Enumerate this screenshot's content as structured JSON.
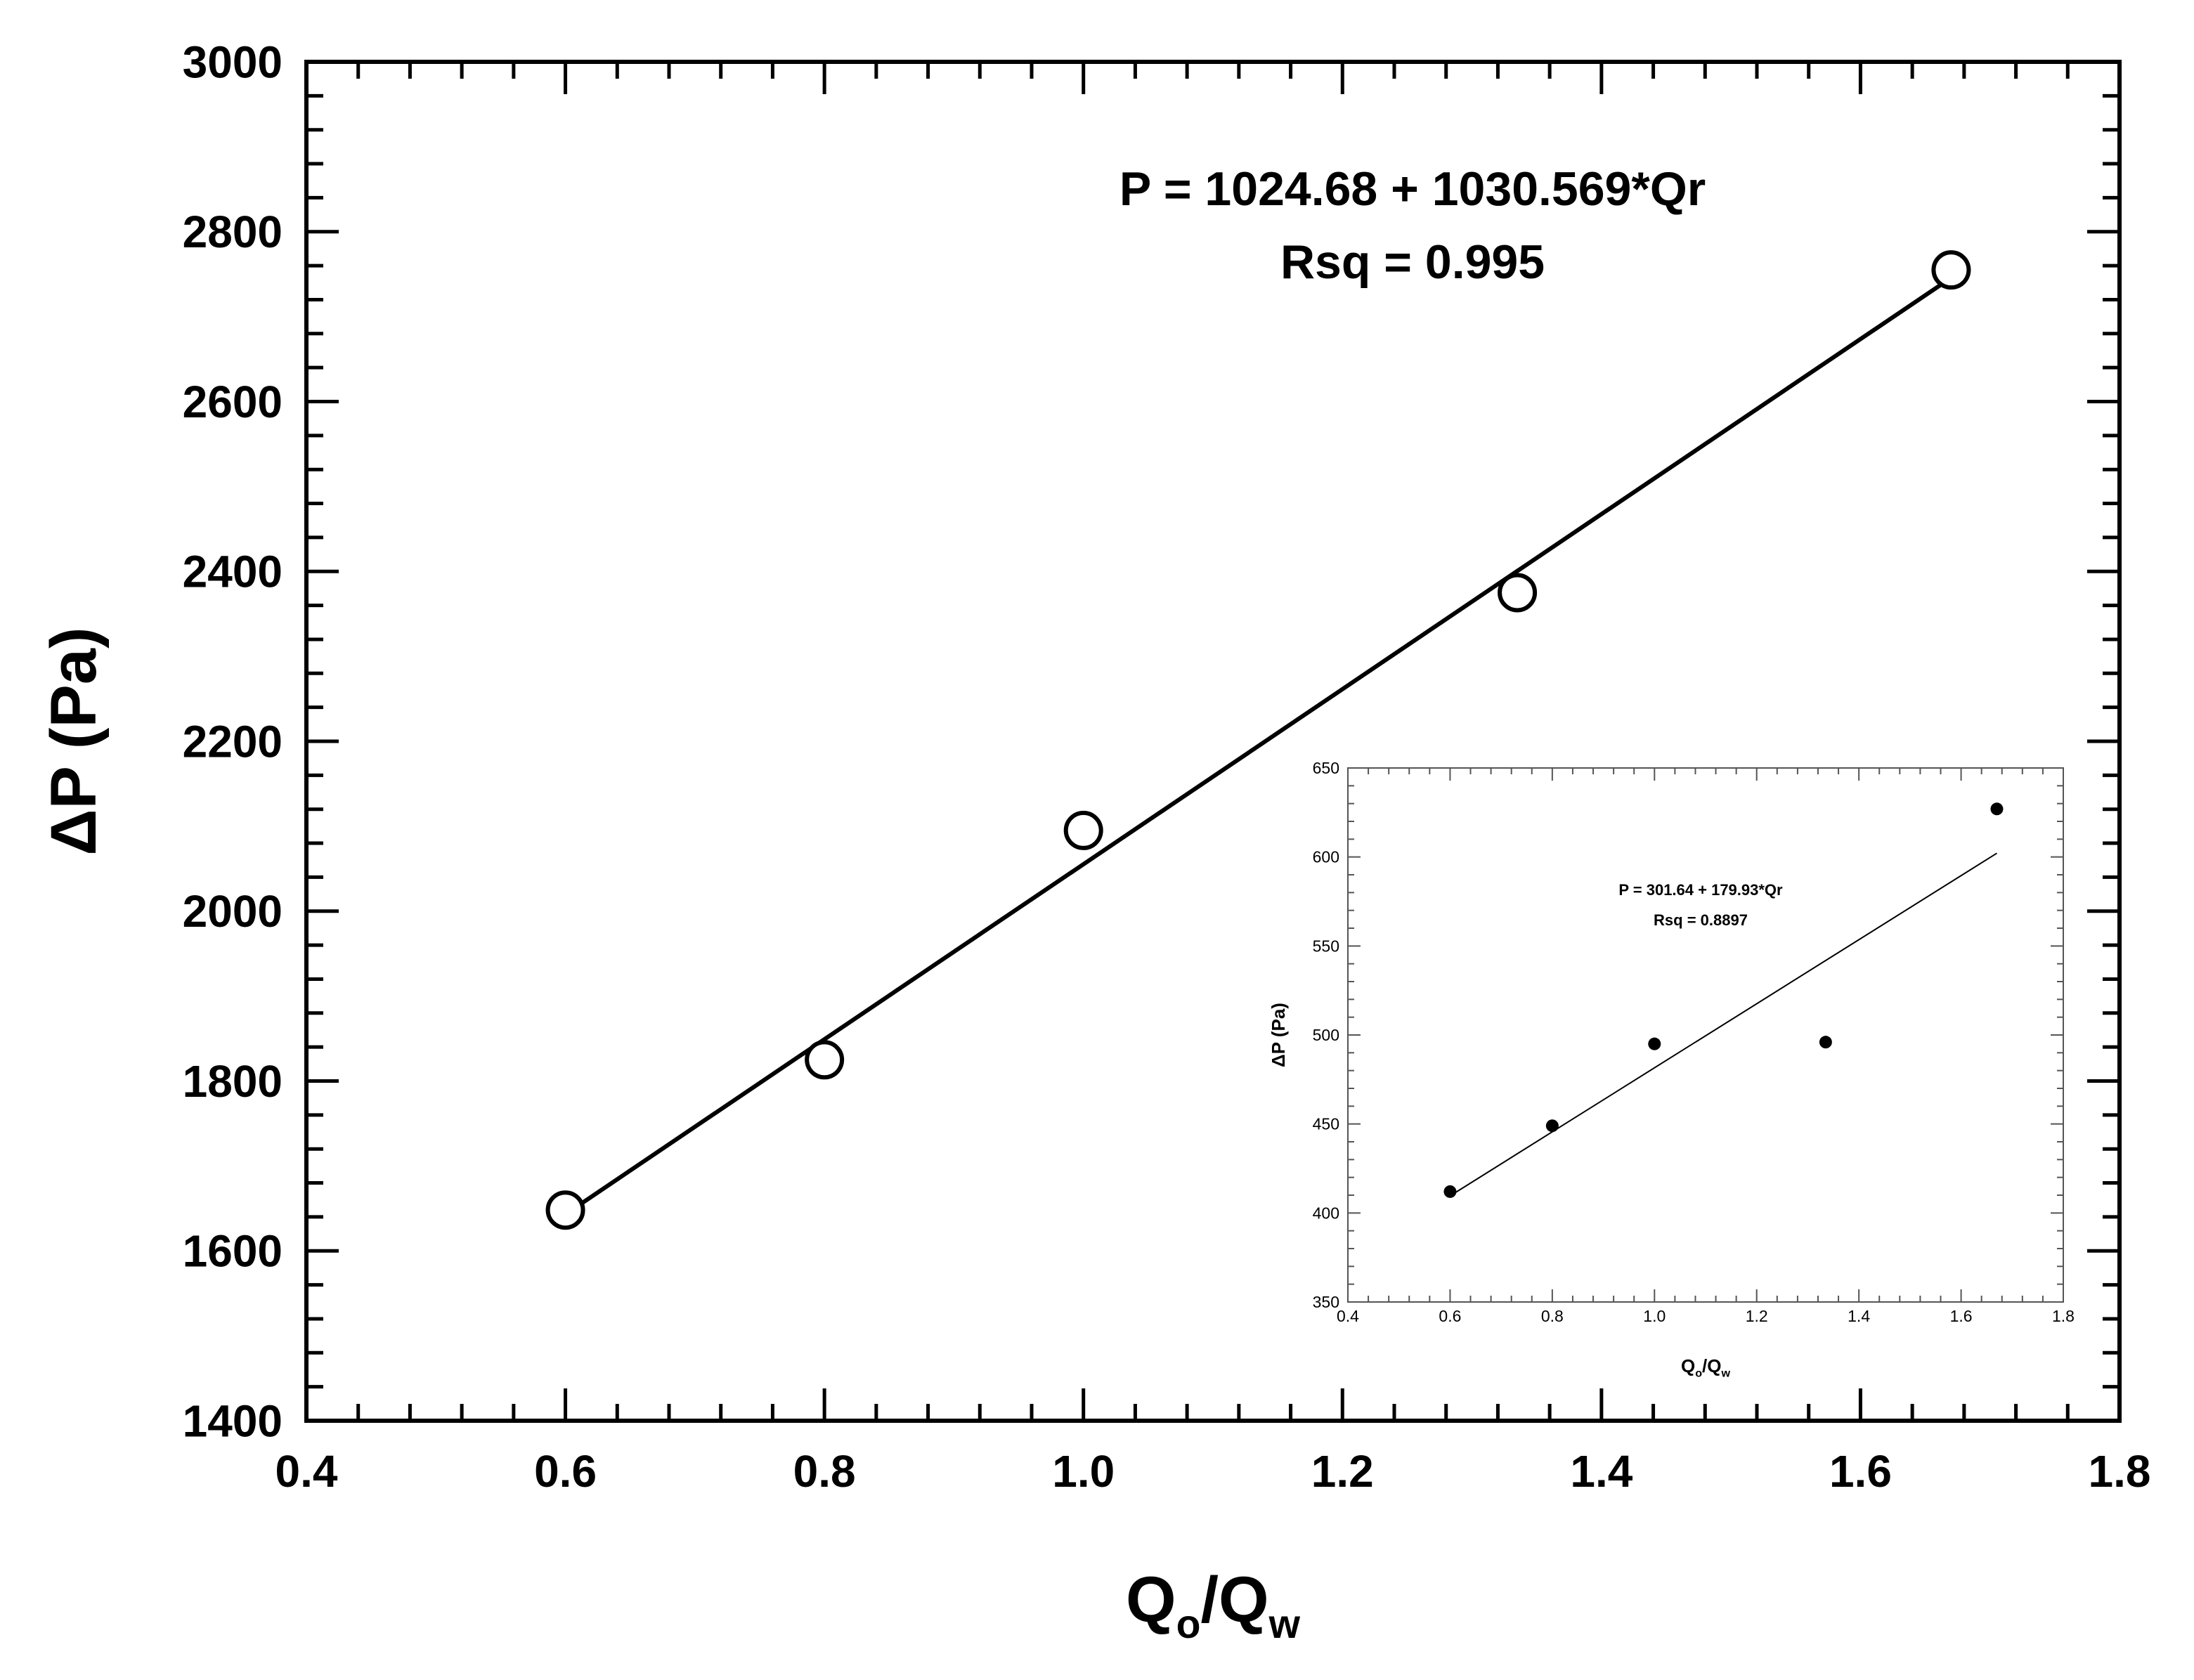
{
  "chart_data": [
    {
      "type": "scatter",
      "title": "",
      "xlabel_main": "Q",
      "xlabel_sub1": "o",
      "xlabel_mid": "/Q",
      "xlabel_sub2": "w",
      "ylabel": "ΔP (Pa)",
      "xlim": [
        0.4,
        1.8
      ],
      "ylim": [
        1400,
        3000
      ],
      "x_ticks": [
        "0.4",
        "0.6",
        "0.8",
        "1.0",
        "1.2",
        "1.4",
        "1.6",
        "1.8"
      ],
      "y_ticks": [
        "1400",
        "1600",
        "1800",
        "2000",
        "2200",
        "2400",
        "2600",
        "2800",
        "3000"
      ],
      "grid": false,
      "marker": "open-circle",
      "series": [
        {
          "points": [
            {
              "x": 0.6,
              "y": 1648
            },
            {
              "x": 0.8,
              "y": 1825
            },
            {
              "x": 1.0,
              "y": 2095
            },
            {
              "x": 1.335,
              "y": 2375
            },
            {
              "x": 1.67,
              "y": 2755
            }
          ]
        }
      ],
      "fit_line": {
        "intercept": 1024.68,
        "slope": 1030.569,
        "x_range": [
          0.6,
          1.67
        ]
      },
      "annotations": [
        "P = 1024.68 + 1030.569*Qr",
        "Rsq = 0.995"
      ]
    },
    {
      "type": "scatter",
      "inset": true,
      "title": "",
      "xlabel_main": "Q",
      "xlabel_sub1": "o",
      "xlabel_mid": "/Q",
      "xlabel_sub2": "w",
      "ylabel": "ΔP (Pa)",
      "xlim": [
        0.4,
        1.8
      ],
      "ylim": [
        350,
        650
      ],
      "x_ticks": [
        "0.4",
        "0.6",
        "0.8",
        "1.0",
        "1.2",
        "1.4",
        "1.6",
        "1.8"
      ],
      "y_ticks": [
        "350",
        "400",
        "450",
        "500",
        "550",
        "600",
        "650"
      ],
      "grid": false,
      "marker": "filled-circle",
      "series": [
        {
          "points": [
            {
              "x": 0.6,
              "y": 412
            },
            {
              "x": 0.8,
              "y": 449
            },
            {
              "x": 1.0,
              "y": 495
            },
            {
              "x": 1.335,
              "y": 496
            },
            {
              "x": 1.67,
              "y": 627
            }
          ]
        }
      ],
      "fit_line": {
        "intercept": 301.64,
        "slope": 179.93,
        "x_range": [
          0.6,
          1.67
        ]
      },
      "annotations": [
        "P = 301.64 + 179.93*Qr",
        "Rsq = 0.8897"
      ]
    }
  ]
}
